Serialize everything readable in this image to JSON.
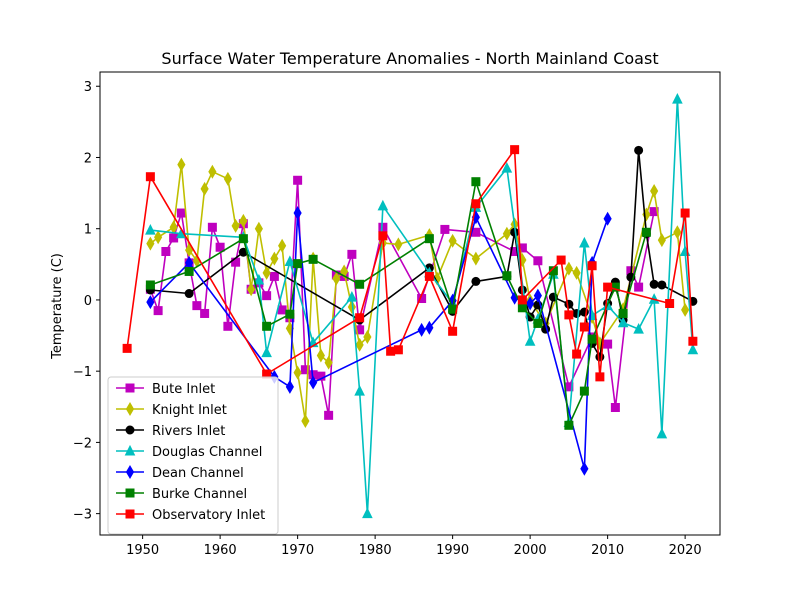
{
  "chart_data": {
    "type": "line",
    "title": "Surface Water Temperature Anomalies - North Mainland Coast",
    "xlabel": "",
    "ylabel": "Temperature (C)",
    "xlim": [
      1944.5,
      2024.5
    ],
    "ylim": [
      -3.3,
      3.2
    ],
    "xticks": [
      1950,
      1960,
      1970,
      1980,
      1990,
      2000,
      2010,
      2020
    ],
    "yticks": [
      -3,
      -2,
      -1,
      0,
      1,
      2,
      3
    ],
    "ytick_labels": [
      "−3",
      "−2",
      "−1",
      "0",
      "1",
      "2",
      "3"
    ],
    "grid": false,
    "legend_position": "lower-left",
    "series": [
      {
        "name": "Bute Inlet",
        "color": "#bf00bf",
        "marker": "square",
        "x": [
          1951,
          1952,
          1953,
          1954,
          1955,
          1956,
          1957,
          1958,
          1959,
          1960,
          1961,
          1962,
          1963,
          1964,
          1965,
          1966,
          1967,
          1968,
          1969,
          1970,
          1971,
          1972,
          1973,
          1974,
          1975,
          1976,
          1977,
          1978,
          1981,
          1986,
          1989,
          1993,
          1998,
          1999,
          2001,
          2005,
          2008,
          2010,
          2011,
          2013,
          2014,
          2016
        ],
        "y": [
          0.15,
          -0.15,
          0.68,
          0.87,
          1.22,
          0.52,
          -0.08,
          -0.19,
          1.02,
          0.74,
          -0.37,
          0.53,
          1.07,
          0.15,
          0.24,
          0.06,
          0.33,
          -0.14,
          -0.25,
          1.68,
          -0.98,
          -1.05,
          -1.07,
          -1.62,
          0.35,
          0.33,
          0.64,
          -0.42,
          1.02,
          0.02,
          0.99,
          0.95,
          0.68,
          0.73,
          0.55,
          -1.22,
          -0.52,
          -0.62,
          -1.51,
          0.41,
          0.18,
          1.24
        ]
      },
      {
        "name": "Knight Inlet",
        "color": "#bfbf00",
        "marker": "thin_diamond",
        "x": [
          1951,
          1952,
          1954,
          1955,
          1956,
          1957,
          1958,
          1959,
          1961,
          1962,
          1963,
          1964,
          1965,
          1966,
          1967,
          1968,
          1969,
          1970,
          1971,
          1972,
          1973,
          1974,
          1975,
          1976,
          1977,
          1978,
          1979,
          1981,
          1983,
          1987,
          1988,
          1990,
          1993,
          1997,
          1998,
          1999,
          2000,
          2002,
          2005,
          2006,
          2008,
          2009,
          2012,
          2015,
          2016,
          2017,
          2019,
          2020
        ],
        "y": [
          0.79,
          0.88,
          1.02,
          1.9,
          0.7,
          0.55,
          1.56,
          1.8,
          1.7,
          1.04,
          1.11,
          0.15,
          1.0,
          0.38,
          0.58,
          0.76,
          -0.4,
          -1.02,
          -1.7,
          0.58,
          -0.78,
          -0.88,
          0.3,
          0.4,
          -0.1,
          -0.63,
          -0.52,
          0.8,
          0.78,
          0.91,
          0.3,
          0.83,
          0.58,
          0.93,
          1.06,
          0.56,
          -0.01,
          -0.33,
          0.44,
          0.38,
          -0.24,
          -0.61,
          -0.13,
          1.2,
          1.53,
          0.84,
          0.95,
          -0.14
        ]
      },
      {
        "name": "Rivers Inlet",
        "color": "#000000",
        "marker": "circle",
        "x": [
          1951,
          1956,
          1963,
          1978,
          1987,
          1990,
          1993,
          1997,
          1998,
          1999,
          2000,
          2001,
          2002,
          2003,
          2005,
          2006,
          2007,
          2008,
          2009,
          2010,
          2011,
          2012,
          2013,
          2014,
          2015,
          2016,
          2017,
          2021
        ],
        "y": [
          0.14,
          0.09,
          0.67,
          -0.28,
          0.45,
          -0.16,
          0.26,
          0.33,
          0.95,
          0.14,
          -0.24,
          -0.07,
          -0.41,
          0.04,
          -0.06,
          -0.19,
          -0.17,
          -0.61,
          -0.8,
          -0.05,
          0.25,
          -0.28,
          0.32,
          2.1,
          0.93,
          0.22,
          0.21,
          -0.02
        ]
      },
      {
        "name": "Douglas Channel",
        "color": "#00bfbf",
        "marker": "triangle_up",
        "x": [
          1951,
          1955,
          1963,
          1965,
          1966,
          1969,
          1972,
          1977,
          1978,
          1979,
          1981,
          1987,
          1990,
          1993,
          1997,
          2000,
          2001,
          2003,
          2005,
          2007,
          2008,
          2010,
          2012,
          2014,
          2016,
          2017,
          2019,
          2020,
          2021
        ],
        "y": [
          0.98,
          0.93,
          0.88,
          0.28,
          -0.74,
          0.54,
          -0.6,
          0.04,
          -1.28,
          -3.0,
          1.32,
          0.38,
          -0.05,
          1.3,
          1.85,
          -0.58,
          -0.27,
          0.36,
          -1.72,
          0.8,
          -0.22,
          -0.08,
          -0.32,
          -0.41,
          0.01,
          -1.88,
          2.82,
          0.68,
          -0.7
        ]
      },
      {
        "name": "Dean Channel",
        "color": "#0000ff",
        "marker": "thin_diamond",
        "x": [
          1951,
          1956,
          1967,
          1969,
          1970,
          1972,
          1986,
          1987,
          1990,
          1993,
          1998,
          2000,
          2001,
          2007,
          2008,
          2010
        ],
        "y": [
          -0.03,
          0.52,
          -1.08,
          -1.22,
          1.22,
          -1.16,
          -0.42,
          -0.39,
          -0.01,
          1.16,
          0.03,
          -0.05,
          0.06,
          -2.37,
          0.52,
          1.14
        ]
      },
      {
        "name": "Burke Channel",
        "color": "#008000",
        "marker": "square",
        "x": [
          1951,
          1956,
          1963,
          1966,
          1969,
          1970,
          1972,
          1978,
          1987,
          1990,
          1993,
          1997,
          1999,
          2001,
          2003,
          2005,
          2007,
          2008,
          2011,
          2012,
          2015
        ],
        "y": [
          0.21,
          0.4,
          0.86,
          -0.37,
          -0.2,
          0.51,
          0.57,
          0.22,
          0.86,
          -0.13,
          1.66,
          0.34,
          -0.11,
          -0.33,
          0.41,
          -1.76,
          -1.28,
          -0.55,
          0.18,
          -0.19,
          0.95
        ]
      },
      {
        "name": "Observatory Inlet",
        "color": "#ff0000",
        "marker": "square",
        "x": [
          1948,
          1951,
          1966,
          1978,
          1981,
          1982,
          1983,
          1987,
          1990,
          1993,
          1998,
          1999,
          2004,
          2005,
          2006,
          2007,
          2008,
          2009,
          2010,
          2018,
          2020,
          2021
        ],
        "y": [
          -0.68,
          1.73,
          -1.04,
          -0.25,
          0.9,
          -0.72,
          -0.7,
          0.33,
          -0.44,
          1.35,
          2.11,
          0.0,
          0.56,
          -0.21,
          -0.76,
          -0.38,
          0.48,
          -1.08,
          0.18,
          -0.05,
          1.22,
          -0.58
        ]
      }
    ]
  }
}
